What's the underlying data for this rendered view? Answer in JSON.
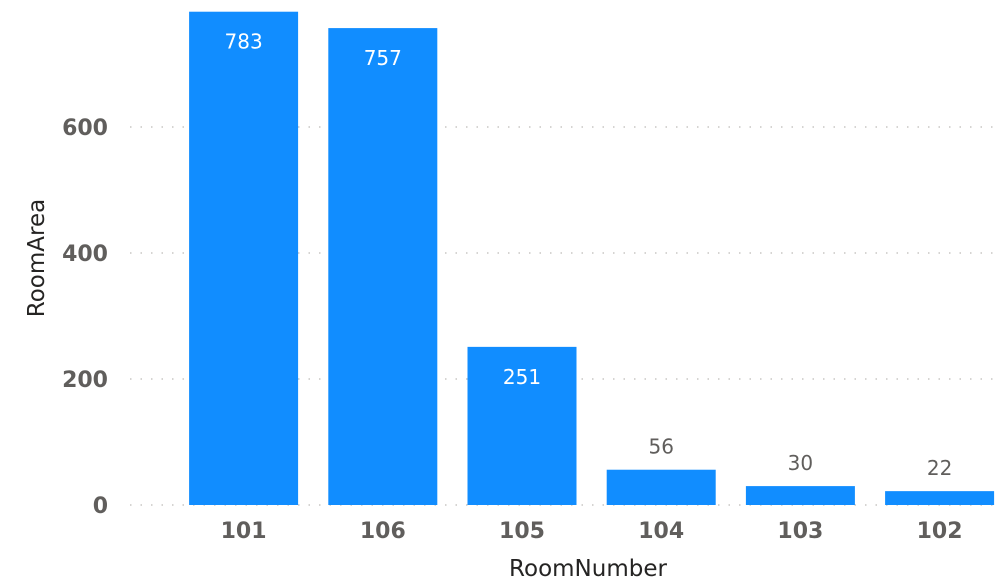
{
  "chart_data": {
    "type": "bar",
    "categories": [
      "101",
      "106",
      "105",
      "104",
      "103",
      "102"
    ],
    "values": [
      783,
      757,
      251,
      56,
      30,
      22
    ],
    "xlabel": "RoomNumber",
    "ylabel": "RoomArea",
    "yticks": [
      0,
      200,
      400,
      600
    ],
    "ylim": [
      0,
      790
    ],
    "grid": true,
    "bar_color": "#118dff",
    "data_labels": true
  }
}
